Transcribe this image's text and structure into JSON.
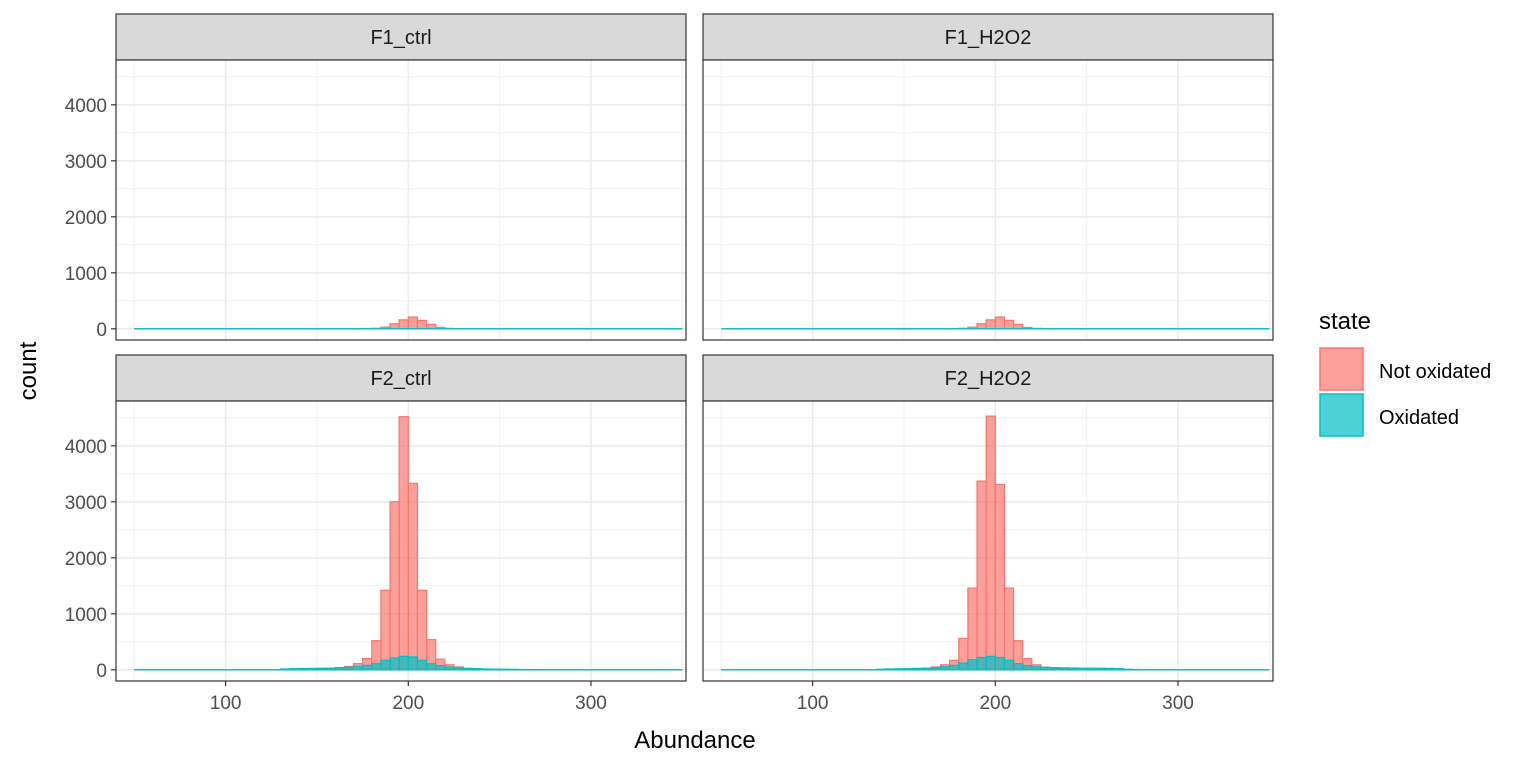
{
  "chart_data": {
    "type": "bar",
    "subtype": "faceted-histogram",
    "xlabel": "Abundance",
    "ylabel": "count",
    "xlim": [
      40,
      352
    ],
    "ylim": [
      -200,
      4800
    ],
    "x_ticks": [
      100,
      200,
      300
    ],
    "x_tick_labels": [
      "100",
      "200",
      "300"
    ],
    "y_ticks": [
      0,
      1000,
      2000,
      3000,
      4000
    ],
    "y_tick_labels": [
      "0",
      "1000",
      "2000",
      "3000",
      "4000"
    ],
    "grid": true,
    "legend": {
      "title": "state",
      "position": "right",
      "entries": [
        {
          "label": "Not oxidated",
          "fill": "#F8766D"
        },
        {
          "label": "Oxidated",
          "fill": "#00BFC4"
        }
      ]
    },
    "bin_width": 5,
    "bin_starts": [
      50,
      55,
      60,
      65,
      70,
      75,
      80,
      85,
      90,
      95,
      100,
      105,
      110,
      115,
      120,
      125,
      130,
      135,
      140,
      145,
      150,
      155,
      160,
      165,
      170,
      175,
      180,
      185,
      190,
      195,
      200,
      205,
      210,
      215,
      220,
      225,
      230,
      235,
      240,
      245,
      250,
      255,
      260,
      265,
      270,
      275,
      280,
      285,
      290,
      295,
      300,
      305,
      310,
      315,
      320,
      325,
      330,
      335,
      340,
      345
    ],
    "series_names": [
      "Not oxidated",
      "Oxidated"
    ],
    "panels": [
      {
        "name": "F1_ctrl",
        "series": [
          {
            "name": "Not oxidated",
            "values": [
              0,
              0,
              0,
              0,
              0,
              0,
              0,
              0,
              0,
              0,
              0,
              0,
              0,
              0,
              0,
              0,
              0,
              0,
              0,
              0,
              0,
              0,
              0,
              0,
              0,
              3,
              10,
              30,
              90,
              160,
              210,
              150,
              80,
              25,
              8,
              2,
              0,
              0,
              0,
              0,
              0,
              0,
              0,
              0,
              0,
              0,
              0,
              0,
              0,
              0,
              0,
              0,
              0,
              0,
              0,
              0,
              0,
              0,
              0,
              0
            ]
          },
          {
            "name": "Oxidated",
            "values": [
              0,
              0,
              0,
              0,
              0,
              0,
              0,
              0,
              0,
              0,
              0,
              0,
              0,
              0,
              0,
              0,
              0,
              0,
              0,
              0,
              0,
              0,
              0,
              0,
              0,
              0,
              0,
              0,
              0,
              0,
              0,
              0,
              0,
              0,
              0,
              0,
              0,
              0,
              0,
              0,
              0,
              0,
              0,
              0,
              0,
              0,
              0,
              0,
              0,
              0,
              0,
              0,
              0,
              0,
              0,
              0,
              0,
              0,
              0,
              0
            ]
          }
        ]
      },
      {
        "name": "F1_H2O2",
        "series": [
          {
            "name": "Not oxidated",
            "values": [
              0,
              0,
              0,
              0,
              0,
              0,
              0,
              0,
              0,
              0,
              0,
              0,
              0,
              0,
              0,
              0,
              0,
              0,
              0,
              0,
              0,
              0,
              0,
              0,
              0,
              3,
              10,
              30,
              90,
              160,
              210,
              150,
              80,
              25,
              8,
              2,
              0,
              0,
              0,
              0,
              0,
              0,
              0,
              0,
              0,
              0,
              0,
              0,
              0,
              0,
              0,
              0,
              0,
              0,
              0,
              0,
              0,
              0,
              0,
              0
            ]
          },
          {
            "name": "Oxidated",
            "values": [
              0,
              0,
              0,
              0,
              0,
              0,
              0,
              0,
              0,
              0,
              0,
              0,
              0,
              0,
              0,
              0,
              0,
              0,
              0,
              0,
              0,
              0,
              0,
              0,
              0,
              0,
              0,
              0,
              0,
              0,
              0,
              0,
              0,
              0,
              0,
              0,
              0,
              0,
              0,
              0,
              0,
              0,
              0,
              0,
              0,
              0,
              0,
              0,
              0,
              0,
              0,
              0,
              0,
              0,
              0,
              0,
              0,
              0,
              0,
              0
            ]
          }
        ]
      },
      {
        "name": "F2_ctrl",
        "series": [
          {
            "name": "Not oxidated",
            "values": [
              0,
              0,
              0,
              0,
              0,
              0,
              0,
              0,
              0,
              0,
              0,
              0,
              0,
              0,
              0,
              0,
              2,
              5,
              8,
              12,
              15,
              20,
              40,
              60,
              110,
              200,
              520,
              1420,
              3000,
              4520,
              3330,
              1420,
              540,
              190,
              90,
              50,
              25,
              15,
              10,
              5,
              3,
              2,
              0,
              0,
              0,
              0,
              0,
              0,
              0,
              0,
              0,
              0,
              0,
              0,
              0,
              0,
              0,
              0,
              0,
              0
            ]
          },
          {
            "name": "Oxidated",
            "values": [
              0,
              0,
              0,
              0,
              0,
              0,
              0,
              0,
              0,
              0,
              0,
              0,
              0,
              0,
              0,
              0,
              15,
              20,
              22,
              25,
              28,
              30,
              35,
              45,
              60,
              80,
              110,
              170,
              210,
              240,
              230,
              170,
              110,
              75,
              50,
              35,
              25,
              20,
              15,
              12,
              10,
              8,
              5,
              3,
              2,
              0,
              0,
              0,
              0,
              0,
              0,
              0,
              0,
              0,
              0,
              0,
              0,
              0,
              0,
              0
            ]
          }
        ]
      },
      {
        "name": "F2_H2O2",
        "series": [
          {
            "name": "Not oxidated",
            "values": [
              0,
              0,
              0,
              0,
              0,
              0,
              0,
              0,
              0,
              0,
              0,
              0,
              0,
              0,
              0,
              0,
              0,
              2,
              4,
              6,
              10,
              15,
              30,
              50,
              90,
              170,
              560,
              1460,
              3370,
              4530,
              3310,
              1460,
              520,
              200,
              90,
              45,
              25,
              15,
              10,
              5,
              3,
              2,
              0,
              0,
              0,
              0,
              0,
              0,
              0,
              0,
              0,
              0,
              0,
              0,
              0,
              0,
              0,
              0,
              0,
              0
            ]
          },
          {
            "name": "Oxidated",
            "values": [
              0,
              0,
              0,
              0,
              0,
              0,
              0,
              0,
              0,
              0,
              0,
              0,
              0,
              0,
              0,
              0,
              0,
              10,
              15,
              18,
              20,
              25,
              30,
              40,
              55,
              80,
              120,
              180,
              220,
              240,
              220,
              170,
              110,
              75,
              55,
              45,
              38,
              35,
              32,
              30,
              30,
              28,
              25,
              20,
              10,
              5,
              0,
              0,
              0,
              0,
              0,
              0,
              0,
              0,
              0,
              0,
              0,
              0,
              0,
              0
            ]
          }
        ]
      }
    ]
  }
}
